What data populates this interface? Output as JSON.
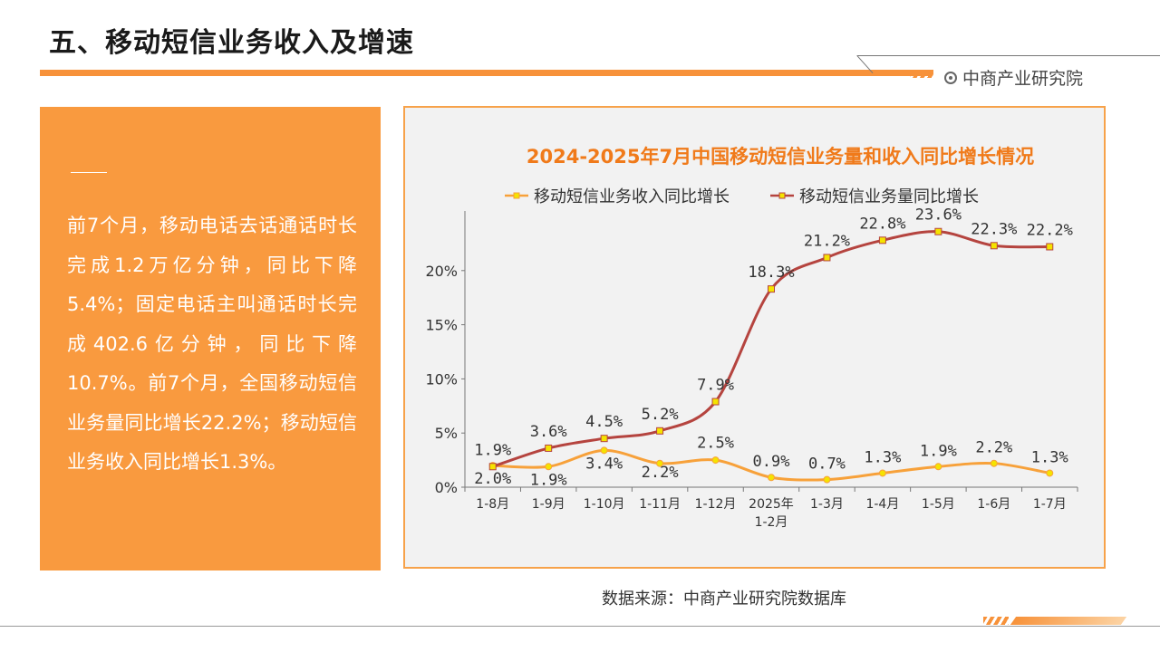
{
  "page": {
    "title": "五、移动短信业务收入及增速",
    "brand": "中商产业研究院",
    "source": "数据来源：中商产业研究院数据库",
    "accent_color": "#f7923a"
  },
  "left_panel": {
    "text": "前7个月，移动电话去话通话时长完成1.2万亿分钟，同比下降5.4%；固定电话主叫通话时长完成402.6亿分钟，同比下降10.7%。前7个月，全国移动短信业务量同比增长22.2%；移动短信业务收入同比增长1.3%。"
  },
  "chart_data": {
    "type": "line",
    "title": "2024-2025年7月中国移动短信业务量和收入同比增长情况",
    "categories": [
      "1-8月",
      "1-9月",
      "1-10月",
      "1-11月",
      "1-12月",
      "2025年\n1-2月",
      "1-3月",
      "1-4月",
      "1-5月",
      "1-6月",
      "1-7月"
    ],
    "ylim": [
      0,
      25
    ],
    "yticks": [
      "0%",
      "5%",
      "10%",
      "15%",
      "20%"
    ],
    "legend_position": "top",
    "series": [
      {
        "name": "移动短信业务收入同比增长",
        "color": "#f7a13a",
        "values": [
          2.0,
          1.9,
          3.4,
          2.2,
          2.5,
          0.9,
          0.7,
          1.3,
          1.9,
          2.2,
          1.3
        ],
        "labels": [
          "2.0%",
          "1.9%",
          "3.4%",
          "2.2%",
          "2.5%",
          "0.9%",
          "0.7%",
          "1.3%",
          "1.9%",
          "2.2%",
          "1.3%"
        ]
      },
      {
        "name": "移动短信业务量同比增长",
        "color": "#b5443f",
        "values": [
          1.9,
          3.6,
          4.5,
          5.2,
          7.9,
          18.3,
          21.2,
          22.8,
          23.6,
          22.3,
          22.2
        ],
        "labels": [
          "1.9%",
          "3.6%",
          "4.5%",
          "5.2%",
          "7.9%",
          "18.3%",
          "21.2%",
          "22.8%",
          "23.6%",
          "22.3%",
          "22.2%"
        ]
      }
    ]
  }
}
